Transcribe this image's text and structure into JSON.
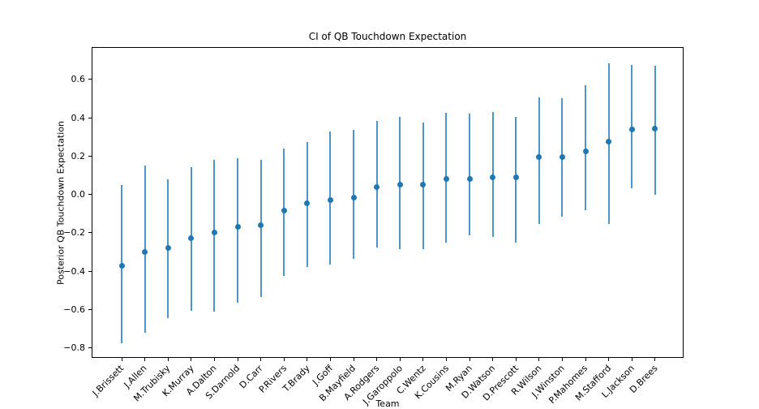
{
  "figure": {
    "title": "CI of QB Touchdown Expectation",
    "xlabel": "Team",
    "ylabel": "Posterior QB Touchdown Expectation"
  },
  "chart_data": {
    "type": "scatter",
    "subtype": "errorbar",
    "title": "CI of QB Touchdown Expectation",
    "xlabel": "Team",
    "ylabel": "Posterior QB Touchdown Expectation",
    "grid": false,
    "legend": "none",
    "ylim": [
      -0.85,
      0.77
    ],
    "yticks": [
      0.6,
      0.4,
      0.2,
      0.0,
      -0.2,
      -0.4,
      -0.6,
      -0.8
    ],
    "ytick_labels": [
      "0.6",
      "0.4",
      "0.2",
      "0.0",
      "−0.2",
      "−0.4",
      "−0.6",
      "−0.8"
    ],
    "categories": [
      "J.Brissett",
      "J.Allen",
      "M.Trubisky",
      "K.Murray",
      "A.Dalton",
      "S.Darnold",
      "D.Carr",
      "P.Rivers",
      "T.Brady",
      "J.Goff",
      "B.Mayfield",
      "A.Rodgers",
      "J.Garoppolo",
      "C.Wentz",
      "K.Cousins",
      "M.Ryan",
      "D.Watson",
      "D.Prescott",
      "R.Wilson",
      "J.Winston",
      "P.Mahomes",
      "M.Stafford",
      "L.Jackson",
      "D.Brees"
    ],
    "series": [
      {
        "name": "posterior_mean",
        "values": [
          -0.37,
          -0.3,
          -0.28,
          -0.23,
          -0.2,
          -0.17,
          -0.16,
          -0.085,
          -0.045,
          -0.03,
          -0.015,
          0.04,
          0.05,
          0.05,
          0.08,
          0.08,
          0.09,
          0.09,
          0.195,
          0.195,
          0.225,
          0.275,
          0.34,
          0.345
        ]
      },
      {
        "name": "ci_low",
        "values": [
          -0.775,
          -0.72,
          -0.645,
          -0.605,
          -0.61,
          -0.565,
          -0.535,
          -0.425,
          -0.38,
          -0.365,
          -0.335,
          -0.275,
          -0.285,
          -0.285,
          -0.25,
          -0.215,
          -0.22,
          -0.25,
          -0.155,
          -0.115,
          -0.08,
          -0.155,
          0.03,
          0.0
        ]
      },
      {
        "name": "ci_high",
        "values": [
          0.05,
          0.15,
          0.08,
          0.14,
          0.18,
          0.19,
          0.18,
          0.24,
          0.275,
          0.33,
          0.335,
          0.385,
          0.405,
          0.375,
          0.425,
          0.42,
          0.43,
          0.405,
          0.505,
          0.5,
          0.57,
          0.685,
          0.675,
          0.67
        ]
      }
    ],
    "colors": {
      "errorbar_line": "#4d94c7",
      "marker": "#1f77b4",
      "axis": "#000000",
      "background": "#ffffff"
    }
  }
}
